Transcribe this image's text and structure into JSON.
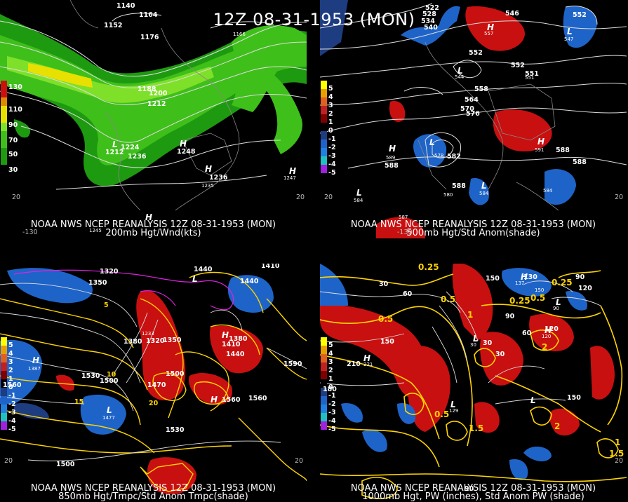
{
  "title": "12Z 08-31-1953 (MON)",
  "colors": {
    "wind_green_light": "#7fe02a",
    "wind_green": "#3fbf1a",
    "wind_green_dark": "#1e9a10",
    "wind_yellow": "#e8e000",
    "wind_orange": "#e0a000",
    "anom_red": "#c81010",
    "anom_blue": "#1e64c8",
    "contour": "#dddddd",
    "temp_contour": "#ffd400",
    "magenta": "#e020e0"
  },
  "panels": [
    {
      "id": "p200",
      "caption_line1": "NOAA NWS NCEP REANALYSIS 12Z 08-31-1953 (MON)",
      "caption_line2": "200mb Hgt/Wnd(kts)",
      "legend": [
        {
          "label": "130",
          "color": "#cc1010"
        },
        {
          "label": "110",
          "color": "#e08a00"
        },
        {
          "label": "90",
          "color": "#e8e000"
        },
        {
          "label": "70",
          "color": "#7fe02a"
        },
        {
          "label": "50",
          "color": "#3fbf1a"
        },
        {
          "label": "30",
          "color": "#1e9a10"
        }
      ],
      "contour_labels": [
        "1140",
        "1164",
        "1152",
        "1176",
        "1188",
        "1200",
        "1212",
        "1224",
        "1236",
        "1248",
        "1236",
        "1212",
        "1247",
        "1235",
        "1166",
        "1245"
      ],
      "highs": [
        "H",
        "H",
        "H",
        "H"
      ],
      "lows": [
        "L"
      ],
      "lon_labels": [
        "-130",
        "20",
        "20"
      ]
    },
    {
      "id": "p500",
      "caption_line1": "NOAA NWS NCEP REANALYSIS 12Z 08-31-1953 (MON)",
      "caption_line2": "500mb Hgt/Std Anom(shade)",
      "legend": [
        {
          "label": "5",
          "color": "#ffff00"
        },
        {
          "label": "4",
          "color": "#e8a000"
        },
        {
          "label": "3",
          "color": "#e06020"
        },
        {
          "label": "2",
          "color": "#c02020"
        },
        {
          "label": "1",
          "color": "#800000"
        },
        {
          "label": "0",
          "color": "#000000"
        },
        {
          "label": "-1",
          "color": "#1e3c80"
        },
        {
          "label": "-2",
          "color": "#1e64c8"
        },
        {
          "label": "-3",
          "color": "#2080e0"
        },
        {
          "label": "-4",
          "color": "#20c0c0"
        },
        {
          "label": "-5",
          "color": "#a020e0"
        }
      ],
      "contour_labels": [
        "522",
        "528",
        "534",
        "540",
        "546",
        "552",
        "552",
        "552",
        "558",
        "564",
        "570",
        "576",
        "582",
        "588",
        "588",
        "588",
        "588",
        "546",
        "552",
        "551"
      ],
      "highs": [
        "H",
        "H",
        "H"
      ],
      "lows": [
        "L",
        "L",
        "L",
        "L",
        "L"
      ],
      "hl_values": [
        "557",
        "547",
        "544",
        "551",
        "589",
        "591",
        "578",
        "584",
        "584",
        "584",
        "587",
        "580"
      ],
      "lon_labels": [
        "-130",
        "20",
        "20"
      ]
    },
    {
      "id": "p850",
      "caption_line1": "NOAA NWS NCEP REANALYSIS 12Z 08-31-1953 (MON)",
      "caption_line2": "850mb Hgt/Tmpc/Std Anom Tmpc(shade)",
      "legend": [
        {
          "label": "5",
          "color": "#ffff00"
        },
        {
          "label": "4",
          "color": "#e8a000"
        },
        {
          "label": "3",
          "color": "#e06020"
        },
        {
          "label": "2",
          "color": "#c02020"
        },
        {
          "label": "1",
          "color": "#800000"
        },
        {
          "label": "0",
          "color": "#000000"
        },
        {
          "label": "-1",
          "color": "#1e3c80"
        },
        {
          "label": "-2",
          "color": "#1e64c8"
        },
        {
          "label": "-3",
          "color": "#2080e0"
        },
        {
          "label": "-4",
          "color": "#20c0c0"
        },
        {
          "label": "-5",
          "color": "#a020e0"
        }
      ],
      "contour_labels": [
        "1470",
        "1440",
        "1320",
        "1350",
        "1410",
        "1440",
        "1380",
        "1320",
        "1350",
        "1380",
        "1410",
        "1440",
        "1500",
        "1530",
        "1500",
        "1560",
        "1590",
        "1560",
        "1530",
        "1560",
        "1470",
        "1500",
        "10",
        "15",
        "20",
        "5",
        "1233",
        "1387",
        "1477"
      ],
      "highs": [
        "H",
        "H",
        "H"
      ],
      "lows": [
        "L",
        "L"
      ],
      "lon_labels": [
        "20",
        "20"
      ]
    },
    {
      "id": "p1000",
      "caption_line1": "NOAA NWS NCEP REANALYSIS 12Z 08-31-1953 (MON)",
      "caption_line2": "1000mb Hgt, PW (inches), Std Anom PW (shade)",
      "legend": [
        {
          "label": "5",
          "color": "#ffff00"
        },
        {
          "label": "4",
          "color": "#e8a000"
        },
        {
          "label": "3",
          "color": "#e06020"
        },
        {
          "label": "2",
          "color": "#c02020"
        },
        {
          "label": "1",
          "color": "#800000"
        },
        {
          "label": "0",
          "color": "#000000"
        },
        {
          "label": "-1",
          "color": "#1e3c80"
        },
        {
          "label": "-2",
          "color": "#1e64c8"
        },
        {
          "label": "-3",
          "color": "#2080e0"
        },
        {
          "label": "-4",
          "color": "#20c0c0"
        },
        {
          "label": "-5",
          "color": "#a020e0"
        }
      ],
      "contour_labels": [
        "0.25",
        "0.25",
        "0.25",
        "0.5",
        "0.5",
        "0.5",
        "0.5",
        "1",
        "1",
        "1.5",
        "1.5",
        "2",
        "2",
        "30",
        "30",
        "30",
        "60",
        "60",
        "90",
        "90",
        "120",
        "120",
        "150",
        "150",
        "180",
        "210",
        "150",
        "130",
        "90"
      ],
      "highs": [
        "H",
        "H",
        "H"
      ],
      "lows": [
        "L",
        "L",
        "L",
        "L"
      ],
      "hl_values": [
        "221",
        "137",
        "150",
        "30",
        "120",
        "129",
        "90"
      ],
      "lon_labels": [
        "20"
      ]
    }
  ]
}
